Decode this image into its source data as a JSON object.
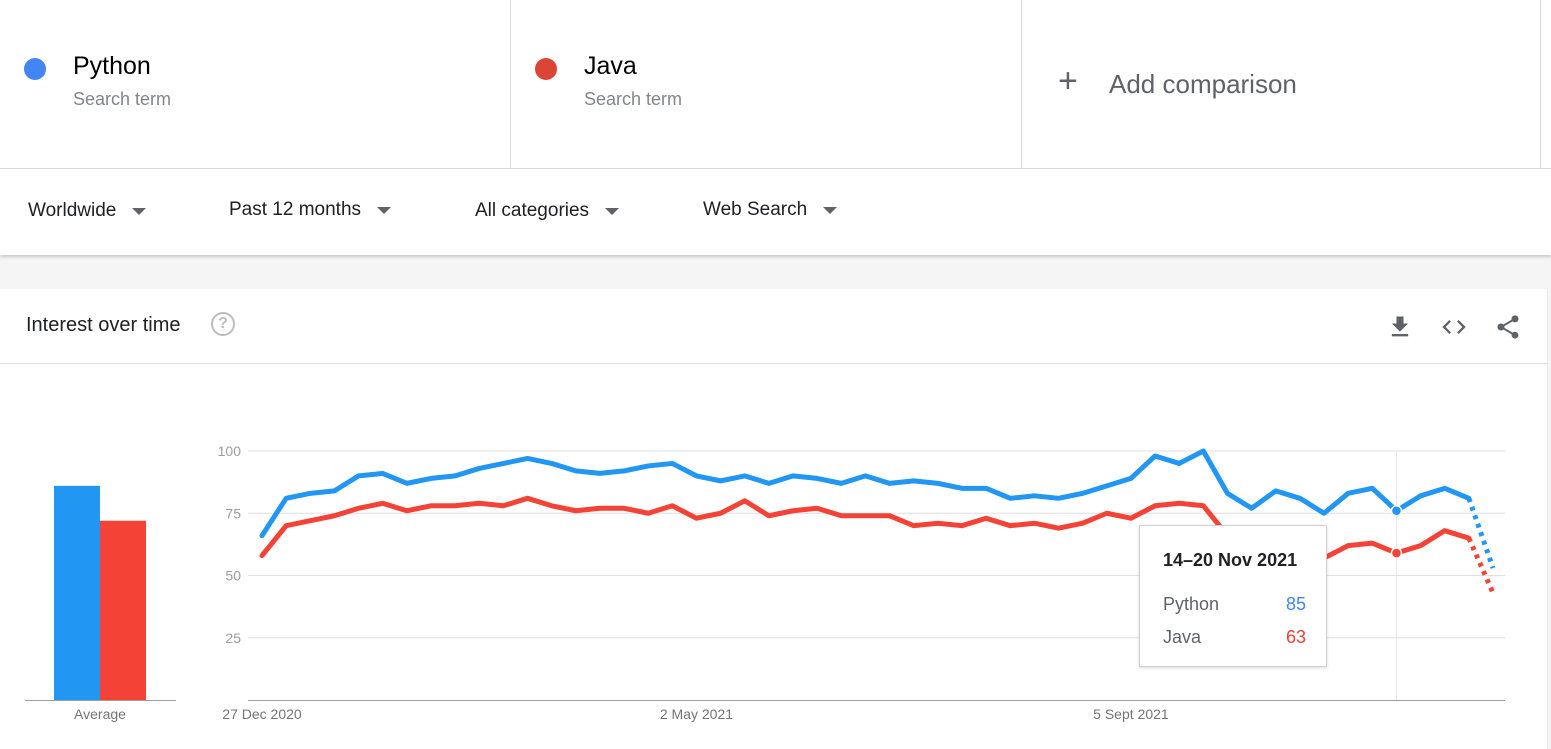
{
  "terms": [
    {
      "name": "Python",
      "subtitle": "Search term",
      "color": "#4285f4"
    },
    {
      "name": "Java",
      "subtitle": "Search term",
      "color": "#db4437"
    }
  ],
  "add_comparison": {
    "icon": "plus-icon",
    "label": "Add comparison"
  },
  "filters": {
    "region": "Worldwide",
    "period": "Past 12 months",
    "category": "All categories",
    "search_type": "Web Search"
  },
  "card": {
    "title": "Interest over time",
    "icons": [
      "help-icon",
      "download-icon",
      "embed-code-icon",
      "share-icon"
    ]
  },
  "tooltip": {
    "date": "14–20 Nov 2021",
    "rows": [
      {
        "name": "Python",
        "value": "85"
      },
      {
        "name": "Java",
        "value": "63"
      }
    ]
  },
  "chart_data": [
    {
      "type": "bar",
      "categories": [
        "Average"
      ],
      "series": [
        {
          "name": "Python",
          "values": [
            86
          ],
          "color": "#2196f3"
        },
        {
          "name": "Java",
          "values": [
            72
          ],
          "color": "#f44336"
        }
      ],
      "xlabel": "Average",
      "ylim": [
        0,
        100
      ]
    },
    {
      "type": "line",
      "x_tick_labels": [
        "27 Dec 2020",
        "2 May 2021",
        "5 Sept 2021"
      ],
      "y_ticks": [
        25,
        50,
        75,
        100
      ],
      "ylim": [
        0,
        100
      ],
      "grid": true,
      "series": [
        {
          "name": "Python",
          "color": "#2196f3",
          "values": [
            66,
            81,
            83,
            84,
            90,
            91,
            87,
            89,
            90,
            93,
            95,
            97,
            95,
            92,
            91,
            92,
            94,
            95,
            90,
            88,
            90,
            87,
            90,
            89,
            87,
            90,
            87,
            88,
            87,
            85,
            85,
            81,
            82,
            81,
            83,
            86,
            89,
            98,
            95,
            100,
            83,
            77,
            84,
            81,
            75,
            83,
            85,
            76,
            82,
            85,
            81
          ],
          "partial_last_value": 53
        },
        {
          "name": "Java",
          "color": "#f44336",
          "values": [
            58,
            70,
            72,
            74,
            77,
            79,
            76,
            78,
            78,
            79,
            78,
            81,
            78,
            76,
            77,
            77,
            75,
            78,
            73,
            75,
            80,
            74,
            76,
            77,
            74,
            74,
            74,
            70,
            71,
            70,
            73,
            70,
            71,
            69,
            71,
            75,
            73,
            78,
            79,
            78,
            66,
            61,
            65,
            66,
            57,
            62,
            63,
            59,
            62,
            68,
            65
          ],
          "partial_last_value": 43
        }
      ]
    }
  ]
}
